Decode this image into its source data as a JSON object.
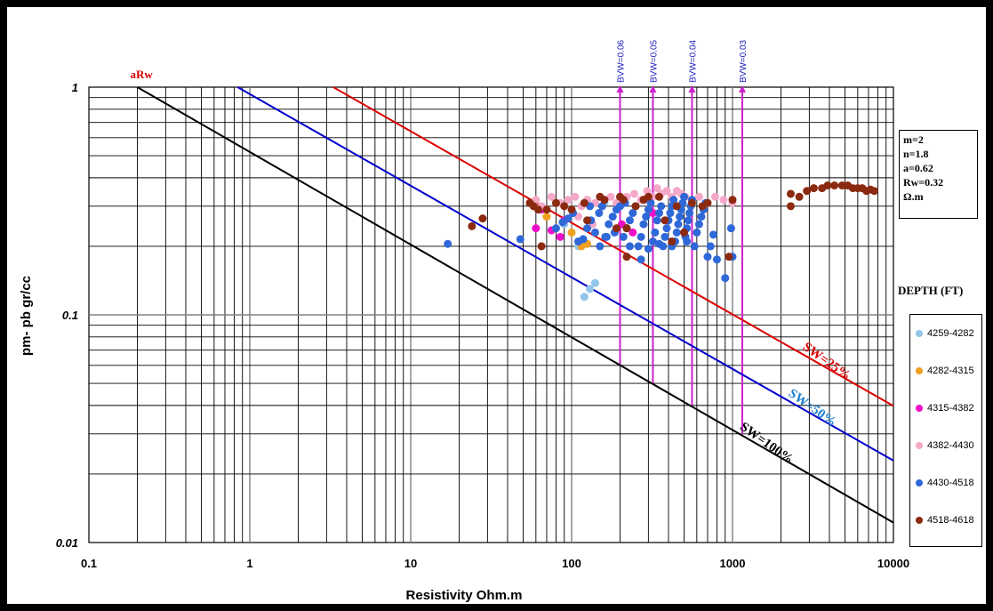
{
  "chart_data": {
    "type": "scatter",
    "title": "",
    "xlabel": "Resistivity Ohm.m",
    "ylabel": "pm- pb gr/cc",
    "x_scale": "log",
    "y_scale": "log",
    "xlim": [
      0.1,
      10000
    ],
    "ylim": [
      0.01,
      1
    ],
    "x_ticks": [
      "0.1",
      "1",
      "10",
      "100",
      "1000",
      "10000"
    ],
    "y_ticks": [
      "0.01",
      "0.1",
      "1"
    ],
    "grid": true,
    "legend_title": "DEPTH (FT)",
    "legend_position": "right",
    "params": [
      "m=2",
      "n=1.8",
      "a=0.62",
      "Rw=0.32",
      "Ω.m"
    ],
    "lines": [
      {
        "label": "aRw",
        "color": "#000000",
        "x": [
          0.2,
          10000
        ],
        "y": [
          1,
          0.01223
        ]
      },
      {
        "label": "SW=50%",
        "color": "#0000cc",
        "x": [
          0.84,
          10000
        ],
        "y": [
          1,
          0.0229
        ]
      },
      {
        "label": "SW=25%",
        "color": "#dd0000",
        "x": [
          3.3,
          10000
        ],
        "y": [
          1,
          0.0398
        ]
      },
      {
        "label": "SW=100%",
        "color": "#000000",
        "x": [
          0.2,
          10000
        ],
        "y": [
          1,
          0.01223
        ]
      }
    ],
    "bvw_lines": [
      {
        "label": "BVW=0.06",
        "x": 200,
        "y_from": 0.06
      },
      {
        "label": "BVW=0.05",
        "x": 320,
        "y_from": 0.05
      },
      {
        "label": "BVW=0.04",
        "x": 560,
        "y_from": 0.04
      },
      {
        "label": "BVW=0.03",
        "x": 1150,
        "y_from": 0.03
      }
    ],
    "series": [
      {
        "name": "4259-4282",
        "color": "#92c5e8",
        "points": [
          [
            120,
            0.12
          ],
          [
            130,
            0.13
          ],
          [
            140,
            0.138
          ],
          [
            110,
            0.2
          ],
          [
            90,
            0.25
          ],
          [
            160,
            0.31
          ]
        ]
      },
      {
        "name": "4282-4315",
        "color": "#f0a020",
        "points": [
          [
            115,
            0.2
          ],
          [
            125,
            0.205
          ],
          [
            100,
            0.23
          ],
          [
            70,
            0.27
          ]
        ]
      },
      {
        "name": "4315-4382",
        "color": "#ee10c8",
        "points": [
          [
            60,
            0.24
          ],
          [
            75,
            0.235
          ],
          [
            90,
            0.26
          ],
          [
            205,
            0.25
          ],
          [
            240,
            0.23
          ],
          [
            320,
            0.28
          ],
          [
            200,
            0.3
          ],
          [
            65,
            0.29
          ],
          [
            85,
            0.22
          ]
        ]
      },
      {
        "name": "4382-4430",
        "color": "#f5a8c8",
        "points": [
          [
            60,
            0.32
          ],
          [
            65,
            0.3
          ],
          [
            75,
            0.33
          ],
          [
            85,
            0.31
          ],
          [
            95,
            0.32
          ],
          [
            105,
            0.33
          ],
          [
            115,
            0.3
          ],
          [
            125,
            0.32
          ],
          [
            140,
            0.31
          ],
          [
            155,
            0.3
          ],
          [
            175,
            0.33
          ],
          [
            190,
            0.31
          ],
          [
            220,
            0.33
          ],
          [
            245,
            0.34
          ],
          [
            270,
            0.32
          ],
          [
            295,
            0.35
          ],
          [
            320,
            0.33
          ],
          [
            340,
            0.36
          ],
          [
            360,
            0.34
          ],
          [
            390,
            0.35
          ],
          [
            420,
            0.33
          ],
          [
            450,
            0.35
          ],
          [
            480,
            0.34
          ],
          [
            510,
            0.33
          ],
          [
            560,
            0.32
          ],
          [
            620,
            0.33
          ],
          [
            700,
            0.31
          ],
          [
            780,
            0.33
          ],
          [
            880,
            0.32
          ],
          [
            1000,
            0.31
          ],
          [
            110,
            0.27
          ],
          [
            135,
            0.25
          ]
        ]
      },
      {
        "name": "4430-4518",
        "color": "#2f68d8",
        "points": [
          [
            17,
            0.205
          ],
          [
            48,
            0.215
          ],
          [
            80,
            0.24
          ],
          [
            88,
            0.255
          ],
          [
            95,
            0.265
          ],
          [
            102,
            0.28
          ],
          [
            110,
            0.21
          ],
          [
            118,
            0.215
          ],
          [
            125,
            0.24
          ],
          [
            132,
            0.26
          ],
          [
            140,
            0.23
          ],
          [
            148,
            0.28
          ],
          [
            155,
            0.3
          ],
          [
            162,
            0.22
          ],
          [
            170,
            0.25
          ],
          [
            180,
            0.27
          ],
          [
            190,
            0.29
          ],
          [
            200,
            0.3
          ],
          [
            210,
            0.22
          ],
          [
            220,
            0.24
          ],
          [
            230,
            0.26
          ],
          [
            240,
            0.28
          ],
          [
            250,
            0.3
          ],
          [
            260,
            0.2
          ],
          [
            270,
            0.22
          ],
          [
            280,
            0.25
          ],
          [
            290,
            0.27
          ],
          [
            300,
            0.29
          ],
          [
            310,
            0.31
          ],
          [
            320,
            0.21
          ],
          [
            330,
            0.23
          ],
          [
            340,
            0.26
          ],
          [
            350,
            0.28
          ],
          [
            360,
            0.3
          ],
          [
            370,
            0.2
          ],
          [
            380,
            0.22
          ],
          [
            390,
            0.24
          ],
          [
            400,
            0.26
          ],
          [
            410,
            0.28
          ],
          [
            420,
            0.3
          ],
          [
            430,
            0.32
          ],
          [
            440,
            0.21
          ],
          [
            450,
            0.23
          ],
          [
            460,
            0.25
          ],
          [
            470,
            0.27
          ],
          [
            480,
            0.29
          ],
          [
            490,
            0.31
          ],
          [
            500,
            0.33
          ],
          [
            510,
            0.22
          ],
          [
            520,
            0.24
          ],
          [
            530,
            0.26
          ],
          [
            540,
            0.28
          ],
          [
            550,
            0.3
          ],
          [
            560,
            0.32
          ],
          [
            580,
            0.2
          ],
          [
            600,
            0.23
          ],
          [
            620,
            0.25
          ],
          [
            640,
            0.27
          ],
          [
            660,
            0.29
          ],
          [
            680,
            0.31
          ],
          [
            700,
            0.18
          ],
          [
            730,
            0.2
          ],
          [
            760,
            0.225
          ],
          [
            800,
            0.175
          ],
          [
            900,
            0.145
          ],
          [
            980,
            0.24
          ],
          [
            1000,
            0.18
          ],
          [
            230,
            0.2
          ],
          [
            270,
            0.175
          ],
          [
            300,
            0.195
          ],
          [
            350,
            0.205
          ],
          [
            420,
            0.2
          ],
          [
            520,
            0.21
          ],
          [
            185,
            0.23
          ],
          [
            215,
            0.31
          ],
          [
            130,
            0.3
          ],
          [
            150,
            0.2
          ],
          [
            165,
            0.22
          ]
        ]
      },
      {
        "name": "4518-4618",
        "color": "#8b2a10",
        "points": [
          [
            24,
            0.245
          ],
          [
            28,
            0.265
          ],
          [
            55,
            0.31
          ],
          [
            58,
            0.3
          ],
          [
            62,
            0.29
          ],
          [
            65,
            0.2
          ],
          [
            70,
            0.29
          ],
          [
            80,
            0.31
          ],
          [
            90,
            0.3
          ],
          [
            100,
            0.29
          ],
          [
            120,
            0.31
          ],
          [
            125,
            0.26
          ],
          [
            150,
            0.33
          ],
          [
            160,
            0.32
          ],
          [
            200,
            0.33
          ],
          [
            210,
            0.32
          ],
          [
            220,
            0.24
          ],
          [
            250,
            0.3
          ],
          [
            280,
            0.32
          ],
          [
            300,
            0.33
          ],
          [
            350,
            0.33
          ],
          [
            380,
            0.26
          ],
          [
            420,
            0.21
          ],
          [
            450,
            0.3
          ],
          [
            500,
            0.23
          ],
          [
            560,
            0.31
          ],
          [
            650,
            0.3
          ],
          [
            700,
            0.31
          ],
          [
            950,
            0.18
          ],
          [
            1000,
            0.32
          ],
          [
            2300,
            0.3
          ],
          [
            2300,
            0.34
          ],
          [
            2600,
            0.33
          ],
          [
            2900,
            0.35
          ],
          [
            3200,
            0.36
          ],
          [
            3600,
            0.36
          ],
          [
            3900,
            0.37
          ],
          [
            4300,
            0.37
          ],
          [
            4800,
            0.37
          ],
          [
            5200,
            0.37
          ],
          [
            5600,
            0.36
          ],
          [
            6000,
            0.36
          ],
          [
            6400,
            0.36
          ],
          [
            6800,
            0.35
          ],
          [
            7200,
            0.355
          ],
          [
            7600,
            0.35
          ],
          [
            220,
            0.18
          ],
          [
            190,
            0.24
          ]
        ]
      }
    ]
  }
}
